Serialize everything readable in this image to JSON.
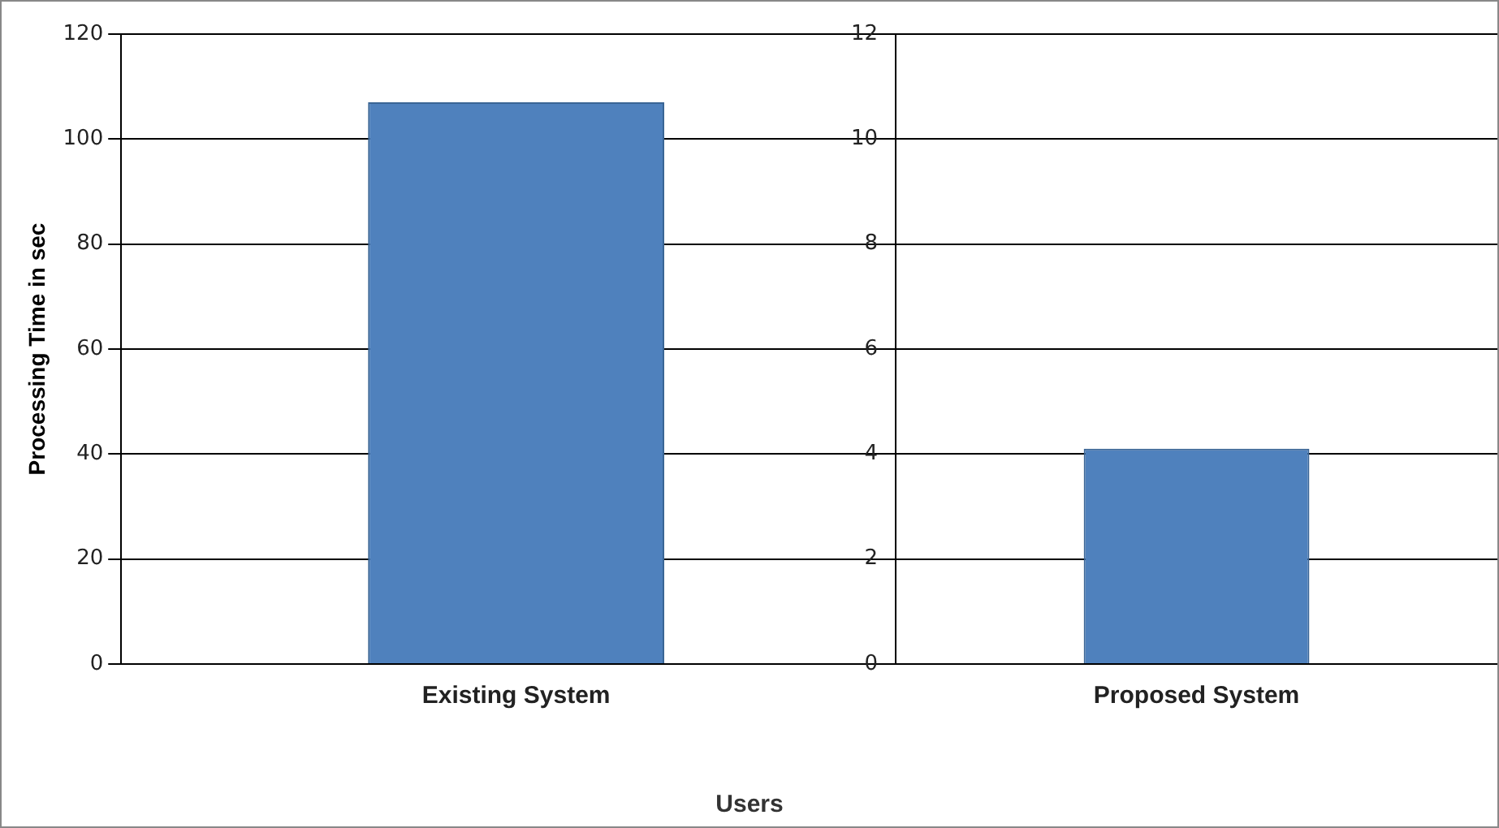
{
  "chart_data": [
    {
      "type": "bar",
      "ylabel": "Processing Time in sec",
      "xlabel": "Users",
      "categories": [
        "Existing System"
      ],
      "values": [
        107
      ],
      "color": "#4f81bd",
      "ylim": [
        0,
        120
      ],
      "yticks": [
        0,
        20,
        40,
        60,
        80,
        100,
        120
      ],
      "grid": "y"
    },
    {
      "type": "bar",
      "categories": [
        "Proposed System"
      ],
      "values": [
        4.1
      ],
      "color": "#4f81bd",
      "ylim": [
        0,
        12
      ],
      "yticks": [
        0,
        2,
        4,
        6,
        8,
        10,
        12
      ],
      "grid": "y"
    }
  ]
}
